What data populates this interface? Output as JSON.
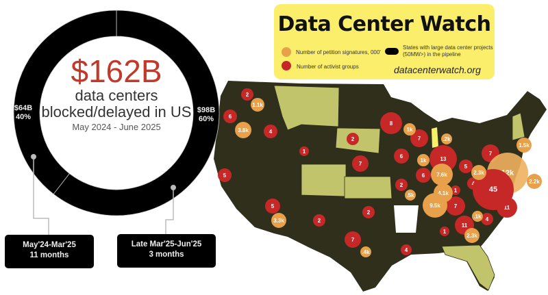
{
  "chart_data": {
    "type": "pie",
    "variant": "donut",
    "center_value": "$162B",
    "center_text": "data centers blocked/delayed in US",
    "center_date": "May 2024 - June 2025",
    "slices": [
      {
        "value_label": "$98B",
        "percent_label": "60%",
        "value": 98,
        "percent": 60,
        "period": "Late Mar'25-Jun'25",
        "duration": "3 months",
        "color": "#000000"
      },
      {
        "value_label": "$64B",
        "percent_label": "40%",
        "value": 64,
        "percent": 40,
        "period": "May'24-Mar'25",
        "duration": "11 months",
        "color": "#000000"
      }
    ]
  },
  "legend": {
    "title": "Data Center Watch",
    "signatures_label": "Number of petition signatures, 000'",
    "groups_label": "Number of activist groups",
    "pipeline_label_1": "States with large data center projects",
    "pipeline_label_2": "(50MW>) in the pipeline",
    "url": "datacenterwatch.org"
  },
  "colors": {
    "signatures": "#e8a04a",
    "groups": "#c62828",
    "pipeline_states": "#2f2f1c",
    "other_states": "#c2c46c",
    "highlight": "#f6ef6a",
    "center_value": "#c0392b"
  },
  "map_bubbles": [
    {
      "label": "2",
      "kind": "groups"
    },
    {
      "label": "6",
      "kind": "groups"
    },
    {
      "label": "4",
      "kind": "groups"
    },
    {
      "label": "1",
      "kind": "groups"
    },
    {
      "label": "2",
      "kind": "groups"
    },
    {
      "label": "7",
      "kind": "groups"
    },
    {
      "label": "8",
      "kind": "groups"
    },
    {
      "label": "7",
      "kind": "groups"
    },
    {
      "label": "6",
      "kind": "groups"
    },
    {
      "label": "6",
      "kind": "groups"
    },
    {
      "label": "13",
      "kind": "groups"
    },
    {
      "label": "5",
      "kind": "groups"
    },
    {
      "label": "7",
      "kind": "groups"
    },
    {
      "label": "4",
      "kind": "groups"
    },
    {
      "label": "1",
      "kind": "groups"
    },
    {
      "label": "7",
      "kind": "groups"
    },
    {
      "label": "11",
      "kind": "groups"
    },
    {
      "label": "2",
      "kind": "groups"
    },
    {
      "label": "5",
      "kind": "groups"
    },
    {
      "label": "5",
      "kind": "groups"
    },
    {
      "label": "2",
      "kind": "groups"
    },
    {
      "label": "2",
      "kind": "groups"
    },
    {
      "label": "7",
      "kind": "groups"
    },
    {
      "label": "4",
      "kind": "groups"
    },
    {
      "label": "1",
      "kind": "groups"
    },
    {
      "label": "11",
      "kind": "groups"
    },
    {
      "label": "4",
      "kind": "groups"
    },
    {
      "label": "12k",
      "kind": "signatures"
    },
    {
      "label": "45",
      "kind": "groups"
    },
    {
      "label": "1.1k",
      "kind": "signatures"
    },
    {
      "label": "3.8k",
      "kind": "signatures"
    },
    {
      "label": "1k",
      "kind": "signatures"
    },
    {
      "label": ".2k",
      "kind": "signatures"
    },
    {
      "label": "1.5k",
      "kind": "signatures"
    },
    {
      "label": "1k",
      "kind": "signatures"
    },
    {
      "label": "7.6k",
      "kind": "signatures"
    },
    {
      "label": "2.3k",
      "kind": "signatures"
    },
    {
      "label": "2.2k",
      "kind": "signatures"
    },
    {
      "label": "4.1k",
      "kind": "signatures"
    },
    {
      "label": ".5k",
      "kind": "signatures"
    },
    {
      "label": "9.5k",
      "kind": "signatures"
    },
    {
      "label": ".1k",
      "kind": "signatures"
    },
    {
      "label": "2.3k",
      "kind": "signatures"
    },
    {
      "label": "3.3k",
      "kind": "signatures"
    },
    {
      "label": ".4k",
      "kind": "signatures"
    }
  ]
}
